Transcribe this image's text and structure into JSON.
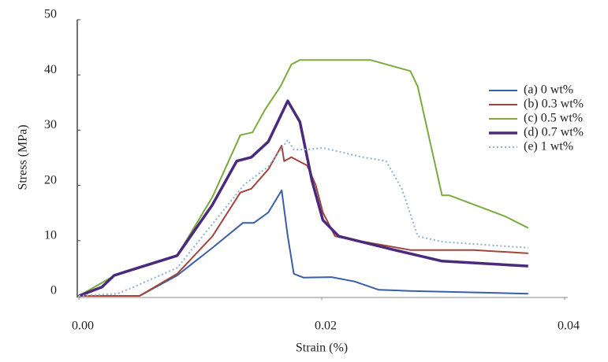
{
  "chart_data": {
    "type": "line",
    "xlabel": "Strain (%)",
    "ylabel": "Stress (MPa)",
    "xlim": [
      0,
      0.04
    ],
    "ylim": [
      0,
      50
    ],
    "xticks": [
      {
        "value": 0,
        "label": "0.00"
      },
      {
        "value": 0.02,
        "label": "0.02"
      },
      {
        "value": 0.04,
        "label": "0.04"
      }
    ],
    "yticks": [
      0,
      10,
      20,
      30,
      40,
      50
    ],
    "legend": "right",
    "series": [
      {
        "name": "(a) 0 wt%",
        "color": "#3a5ea8",
        "style": "solid",
        "x": [
          0,
          0.005,
          0.0081,
          0.011,
          0.0135,
          0.0144,
          0.0156,
          0.0167,
          0.0172,
          0.0177,
          0.0185,
          0.0208,
          0.0227,
          0.0247,
          0.0273,
          0.037
        ],
        "values": [
          0,
          0,
          3.7,
          8.7,
          13.2,
          13.2,
          15.1,
          19.1,
          10.8,
          4.0,
          3.3,
          3.4,
          2.6,
          1.1,
          0.9,
          0.4
        ]
      },
      {
        "name": "(b) 0.3 wt%",
        "color": "#a0463c",
        "style": "solid",
        "x": [
          0,
          0.005,
          0.0081,
          0.011,
          0.0133,
          0.0142,
          0.0156,
          0.0167,
          0.0169,
          0.0175,
          0.0188,
          0.0195,
          0.0201,
          0.0211,
          0.0227,
          0.0273,
          0.0325,
          0.037
        ],
        "values": [
          0,
          0,
          4.0,
          10.8,
          18.7,
          19.4,
          22.9,
          27.2,
          24.4,
          25.1,
          23.6,
          20.1,
          15.1,
          10.8,
          10.1,
          8.3,
          8.3,
          7.7
        ]
      },
      {
        "name": "(c) 0.5 wt%",
        "color": "#7aab3c",
        "style": "solid",
        "x": [
          0,
          0.0032,
          0.0081,
          0.011,
          0.0133,
          0.0143,
          0.0153,
          0.0166,
          0.0175,
          0.0182,
          0.024,
          0.0273,
          0.0279,
          0.0299,
          0.0305,
          0.0351,
          0.037
        ],
        "values": [
          0,
          4.0,
          7.3,
          17.9,
          29.1,
          29.6,
          33.6,
          37.9,
          41.9,
          42.7,
          42.7,
          40.7,
          37.9,
          18.2,
          18.2,
          14.4,
          12.3
        ]
      },
      {
        "name": "(d) 0.7 wt%",
        "color": "#4b2a7d",
        "style": "thick",
        "x": [
          0,
          0.0019,
          0.0029,
          0.0039,
          0.0081,
          0.011,
          0.013,
          0.0142,
          0.0156,
          0.0166,
          0.0172,
          0.0182,
          0.0192,
          0.0201,
          0.0214,
          0.026,
          0.0299,
          0.037
        ],
        "values": [
          0,
          1.6,
          3.7,
          4.4,
          7.3,
          16.5,
          24.4,
          25.1,
          27.9,
          32.5,
          35.3,
          31.5,
          20.8,
          13.7,
          10.8,
          8.3,
          6.3,
          5.4
        ]
      },
      {
        "name": "(e) 1 wt%",
        "color": "#8fb0cf",
        "style": "dotted",
        "x": [
          0,
          0.0032,
          0.0045,
          0.0081,
          0.011,
          0.0136,
          0.0156,
          0.0172,
          0.0177,
          0.0188,
          0.0201,
          0.0234,
          0.0253,
          0.0266,
          0.0279,
          0.0299,
          0.0325,
          0.037
        ],
        "values": [
          0,
          0.4,
          1.6,
          5.1,
          13.0,
          20.1,
          23.4,
          28.2,
          26.5,
          26.5,
          26.8,
          25.1,
          24.4,
          19.4,
          10.8,
          9.8,
          9.4,
          8.7
        ]
      }
    ]
  }
}
